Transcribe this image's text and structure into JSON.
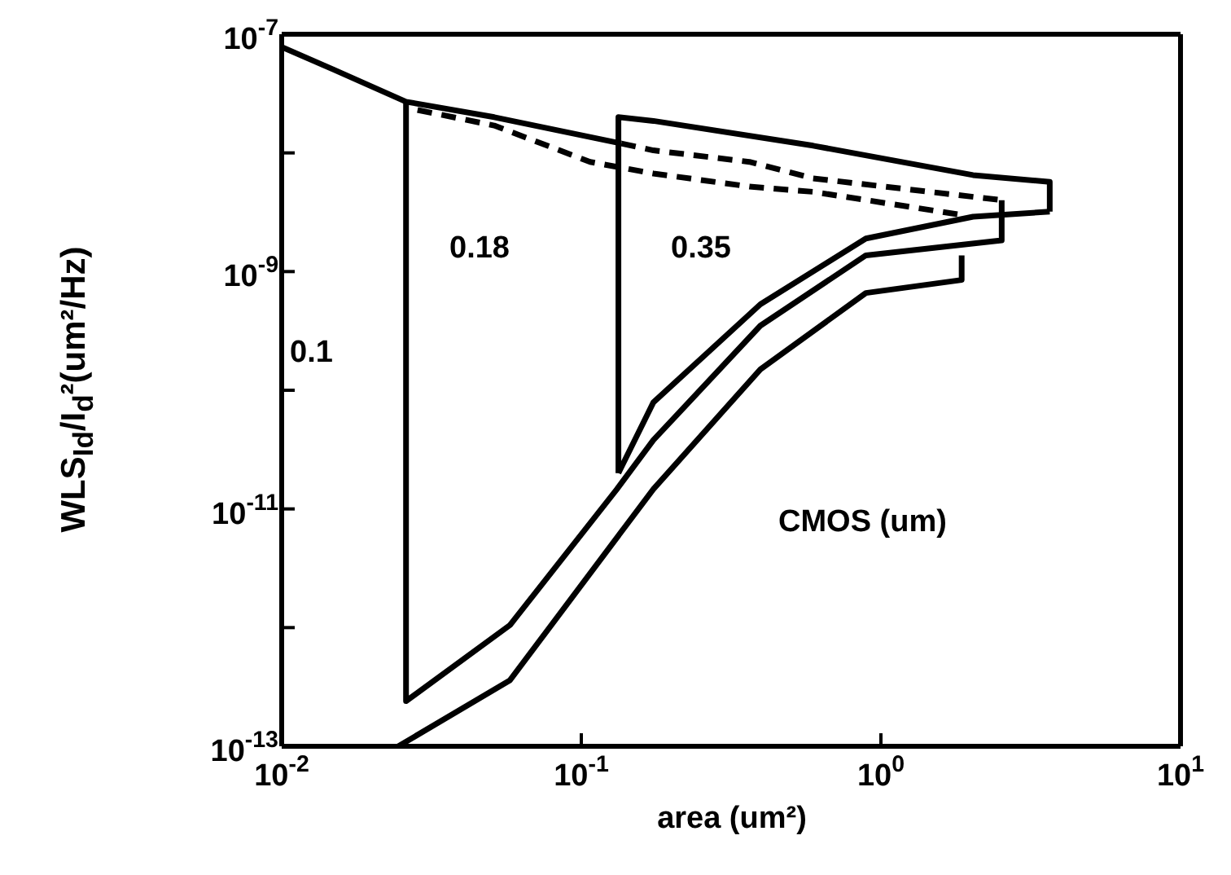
{
  "chart_data": {
    "type": "line",
    "xlabel": "area (um²)",
    "ylabel": "WLS$_{Id}$/I$_{d}$²(um²/Hz)",
    "log": "xy",
    "grid": false,
    "marker": "none",
    "xlim": [
      0.01,
      10
    ],
    "ylim": [
      1e-13,
      1e-07
    ],
    "xticks": [
      {
        "value": 0.01,
        "label": "10$^{-2}$"
      },
      {
        "value": 0.1,
        "label": "10$^{-1}$"
      },
      {
        "value": 1,
        "label": "10$^{0}$"
      },
      {
        "value": 10,
        "label": "10$^{1}$"
      }
    ],
    "yticks": [
      {
        "value": 1e-13,
        "label": "10$^{-13}$"
      },
      {
        "value": 1e-12,
        "label": null
      },
      {
        "value": 1e-11,
        "label": "10$^{-11}$"
      },
      {
        "value": 1e-10,
        "label": null
      },
      {
        "value": 1e-09,
        "label": "10$^{-9}$"
      },
      {
        "value": 1e-08,
        "label": null
      },
      {
        "value": 1e-07,
        "label": "10$^{-7}$"
      }
    ],
    "series": [
      {
        "color": "#000000",
        "line_style": "solid",
        "x": [
          0.01,
          0.015,
          0.026,
          0.0512,
          0.136
        ],
        "values": [
          7.8e-08,
          5e-08,
          2.7e-08,
          2e-08,
          1.2e-08
        ]
      },
      {
        "color": "#000000",
        "line_style": "solid",
        "x": [
          0.026,
          0.026,
          0.0578,
          0.1315,
          0.174,
          0.396,
          0.891,
          2.53,
          2.53
        ],
        "values": [
          2.7e-08,
          2.4e-13,
          1.05e-12,
          1.47e-11,
          3.8e-11,
          3.5e-10,
          1.37e-09,
          1.83e-09,
          4e-09
        ]
      },
      {
        "color": "#000000",
        "line_style": "dashed",
        "x": [
          0.136,
          0.174,
          0.364,
          0.594,
          2.53
        ],
        "values": [
          1.2e-08,
          1.05e-08,
          8.4e-09,
          6.1e-09,
          4e-09
        ]
      },
      {
        "color": "#000000",
        "line_style": "dashed",
        "x": [
          0.0284,
          0.0512,
          0.107,
          0.174,
          0.364,
          0.594,
          1.86
        ],
        "values": [
          2.3e-08,
          1.7e-08,
          8.4e-09,
          6.7e-09,
          5.2e-09,
          4.7e-09,
          3e-09
        ]
      },
      {
        "color": "#000000",
        "line_style": "solid",
        "x": [
          0.133,
          0.133,
          0.174,
          0.594,
          2.03,
          3.66,
          3.66
        ],
        "values": [
          2e-11,
          2e-08,
          1.86e-08,
          1.15e-08,
          6.5e-09,
          5.7e-09,
          3.2e-09
        ]
      },
      {
        "color": "#000000",
        "line_style": "solid",
        "x": [
          0.133,
          0.174,
          0.396,
          0.891,
          2.03,
          3.66
        ],
        "values": [
          2e-11,
          7.9e-11,
          5.3e-10,
          1.9e-09,
          2.9e-09,
          3.2e-09
        ]
      },
      {
        "color": "#000000",
        "line_style": "solid",
        "x": [
          0.0245,
          0.0578,
          0.174,
          0.396,
          0.891,
          1.86,
          1.86
        ],
        "values": [
          1e-13,
          3.6e-13,
          1.47e-11,
          1.5e-10,
          6.6e-10,
          8.5e-10,
          1.37e-09
        ]
      }
    ],
    "annotations": [
      "0.1",
      "0.18",
      "0.35",
      "CMOS (um)"
    ]
  }
}
